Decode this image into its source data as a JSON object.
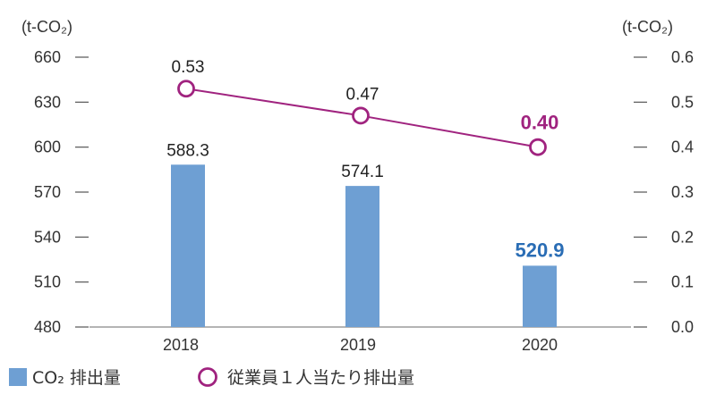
{
  "chart_data": {
    "type": "bar+line",
    "categories": [
      "2018",
      "2019",
      "2020"
    ],
    "y_left": {
      "unit_label": "(t-CO₂)",
      "lim": [
        480,
        660
      ],
      "ticks": [
        "660",
        "630",
        "600",
        "570",
        "540",
        "510",
        "480"
      ]
    },
    "y_right": {
      "unit_label": "(t-CO₂)",
      "lim": [
        0.0,
        0.6
      ],
      "ticks": [
        "0.6",
        "0.5",
        "0.4",
        "0.3",
        "0.2",
        "0.1",
        "0.0"
      ]
    },
    "series": [
      {
        "name": "CO₂ 排出量",
        "kind": "bar",
        "axis": "left",
        "values": [
          588.3,
          574.1,
          520.9
        ],
        "labels": [
          "588.3",
          "574.1",
          "520.9"
        ],
        "color": "#6e9fd3",
        "highlight_color": "#2a6db5"
      },
      {
        "name": "従業員１人当たり排出量",
        "kind": "line",
        "axis": "right",
        "values": [
          0.53,
          0.47,
          0.4
        ],
        "labels": [
          "0.53",
          "0.47",
          "0.40"
        ],
        "color": "#a0237f"
      }
    ],
    "legend_position": "bottom-left",
    "grid": false
  }
}
